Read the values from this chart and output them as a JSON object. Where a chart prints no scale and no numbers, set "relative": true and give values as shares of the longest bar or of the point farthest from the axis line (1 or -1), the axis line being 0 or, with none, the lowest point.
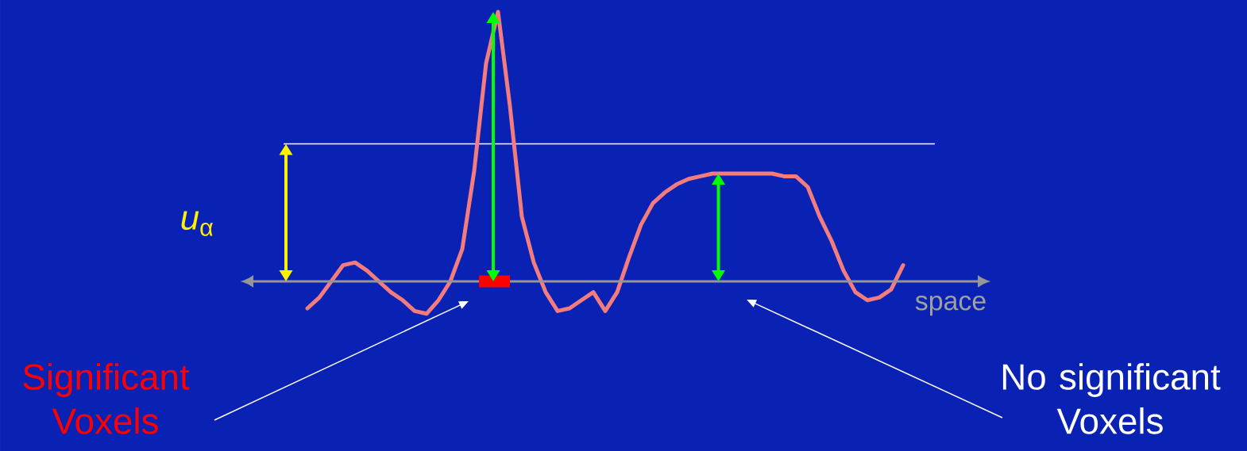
{
  "chart_data": {
    "type": "line",
    "relative": true,
    "xlabel": "space",
    "categories": [
      null,
      null,
      null,
      null,
      null,
      null,
      null,
      null,
      null,
      null,
      null,
      null,
      null,
      null,
      null,
      null,
      null,
      null,
      null,
      null,
      null,
      null,
      null,
      null,
      null,
      null,
      null,
      null,
      null,
      null,
      null,
      null,
      null,
      null,
      null,
      null,
      null,
      null,
      null,
      null,
      null,
      null,
      null,
      null,
      null,
      null,
      null,
      null,
      null,
      null,
      null
    ],
    "series": [
      {
        "color": "#f47c7c",
        "values": [
          -0.1,
          -0.06,
          0,
          0.06,
          0.07,
          0.04,
          0,
          -0.04,
          -0.07,
          -0.11,
          -0.12,
          -0.07,
          0,
          0.12,
          0.41,
          0.81,
          1,
          0.65,
          0.24,
          0.07,
          -0.04,
          -0.11,
          -0.1,
          -0.07,
          -0.04,
          -0.11,
          -0.04,
          0.09,
          0.21,
          0.29,
          0.33,
          0.36,
          0.38,
          0.39,
          0.4,
          0.4,
          0.4,
          0.4,
          0.4,
          0.4,
          0.39,
          0.39,
          0.35,
          0.24,
          0.15,
          0.04,
          -0.04,
          -0.07,
          -0.06,
          -0.03,
          0.06
        ]
      }
    ],
    "ref_lines": [
      {
        "axis": "y",
        "value": 0.51,
        "label": "*u*$_{α}$",
        "color": "#ffffff"
      }
    ],
    "annotations": [
      "Significant Voxels",
      "No significant Voxels"
    ]
  }
}
